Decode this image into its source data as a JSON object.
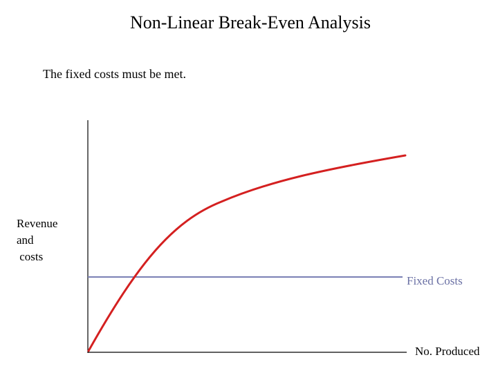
{
  "slide": {
    "title": "Non-Linear Break-Even Analysis",
    "subtitle": "The fixed costs must be met."
  },
  "diagram": {
    "y_axis_label_lines": [
      "Revenue",
      "and",
      " costs"
    ],
    "x_axis_label": "No. Produced",
    "fixed_costs_label": "Fixed Costs",
    "colors": {
      "revenue_curve": "#d42020",
      "fixed_costs_line": "#7a80b4",
      "axes": "#000000",
      "fixed_costs_text": "#6a70a4"
    }
  }
}
